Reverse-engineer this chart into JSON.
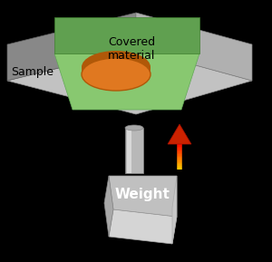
{
  "bg_color": "#000000",
  "plate_top": "#c0c0c0",
  "plate_left": "#909090",
  "plate_right": "#b0b0b0",
  "plate_edge_color": "#808080",
  "green_top": "#8cc870",
  "green_left": "#6aaa50",
  "green_right": "#78b860",
  "sample_top": "#e08830",
  "sample_side": "#b86010",
  "weight_top": "#c8c8c8",
  "weight_front": "#b0b0b0",
  "weight_right": "#d0d0d0",
  "handle_color": "#b8b8b8",
  "handle_highlight": "#d8d8d8",
  "weight_label": "Weight",
  "sample_label": "Sample",
  "covered_label": "Covered\nmaterial"
}
